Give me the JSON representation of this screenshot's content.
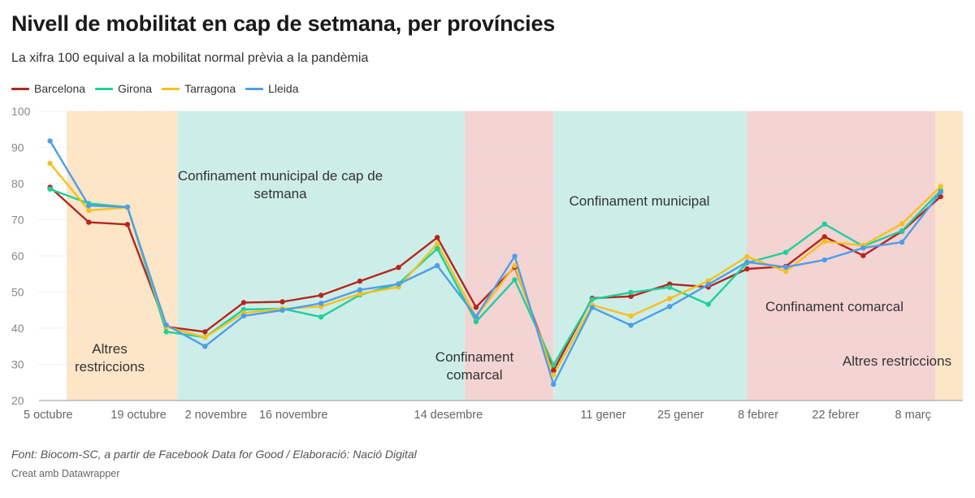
{
  "header": {
    "title": "Nivell de mobilitat en cap de setmana, per províncies",
    "subtitle": "La xifra 100 equival a la mobilitat normal prèvia a la pandèmia"
  },
  "footer": {
    "source": "Font: Biocom-SC, a partir de Facebook Data for Good / Elaboració: Nació Digital",
    "credit": "Creat amb Datawrapper"
  },
  "chart_data": {
    "type": "line",
    "title": "Nivell de mobilitat en cap de setmana, per províncies",
    "subtitle": "La xifra 100 equival a la mobilitat normal prèvia a la pandèmia",
    "xlabel": "",
    "ylabel": "",
    "ylim": [
      20,
      100
    ],
    "yticks": [
      20,
      30,
      40,
      50,
      60,
      70,
      80,
      90,
      100
    ],
    "grid": true,
    "legend_position": "top-left",
    "x": [
      "2020-10-03",
      "2020-10-10",
      "2020-10-17",
      "2020-10-24",
      "2020-10-31",
      "2020-11-07",
      "2020-11-14",
      "2020-11-21",
      "2020-11-28",
      "2020-12-05",
      "2020-12-12",
      "2020-12-19",
      "2020-12-26",
      "2021-01-02",
      "2021-01-09",
      "2021-01-16",
      "2021-01-23",
      "2021-01-30",
      "2021-02-06",
      "2021-02-13",
      "2021-02-20",
      "2021-02-27",
      "2021-03-06",
      "2021-03-13"
    ],
    "xticks": [
      {
        "date": "2020-10-05",
        "label": "5 octubre"
      },
      {
        "date": "2020-10-19",
        "label": "19 octubre"
      },
      {
        "date": "2020-11-02",
        "label": "2 novembre"
      },
      {
        "date": "2020-11-16",
        "label": "16 novembre"
      },
      {
        "date": "2020-12-14",
        "label": "14 desembre"
      },
      {
        "date": "2021-01-11",
        "label": "11 gener"
      },
      {
        "date": "2021-01-25",
        "label": "25 gener"
      },
      {
        "date": "2021-02-08",
        "label": "8 febrer"
      },
      {
        "date": "2021-02-22",
        "label": "22 febrer"
      },
      {
        "date": "2021-03-08",
        "label": "8 març"
      }
    ],
    "series": [
      {
        "name": "Barcelona",
        "color": "#b5251f",
        "values": [
          79,
          69.3,
          68.7,
          40.4,
          39,
          47.1,
          47.3,
          49.1,
          53,
          56.8,
          65.1,
          45.8,
          56.9,
          28.3,
          48.3,
          48.8,
          52.2,
          51.4,
          56.4,
          57.1,
          65.3,
          60.1,
          66.8,
          76.4
        ]
      },
      {
        "name": "Girona",
        "color": "#1fcf9c",
        "values": [
          78.5,
          74.5,
          73.5,
          39,
          37.5,
          45.2,
          45.4,
          43.1,
          49.2,
          52.3,
          62,
          41.8,
          53.4,
          29.8,
          48,
          49.9,
          51.3,
          46.6,
          58.1,
          61,
          68.8,
          62.7,
          66.9,
          78.1
        ]
      },
      {
        "name": "Tarragona",
        "color": "#f6c01f",
        "values": [
          85.6,
          72.6,
          73.4,
          40.4,
          37.5,
          44.2,
          45.4,
          46,
          49.5,
          51.4,
          63.4,
          43.1,
          57.3,
          27.1,
          46.4,
          43.4,
          48.2,
          53.1,
          59.8,
          55.7,
          64,
          62.9,
          68.9,
          79.2
        ]
      },
      {
        "name": "Lleida",
        "color": "#4d9ee9",
        "values": [
          91.8,
          73.9,
          73.5,
          40.9,
          35,
          43.4,
          45,
          46.9,
          50.6,
          52.2,
          57.3,
          43.2,
          59.9,
          24.5,
          45.7,
          40.8,
          46,
          52.1,
          58.3,
          56.9,
          58.9,
          62.2,
          63.8,
          77.6
        ]
      }
    ],
    "annotations": [
      {
        "label": "Altres restriccions",
        "start": "2020-10-06",
        "end": "2020-10-26",
        "color": "#fde5c7"
      },
      {
        "label": "Confinament municipal de cap de setmana",
        "start": "2020-10-26",
        "end": "2020-12-17",
        "color": "#cdeee8"
      },
      {
        "label": "Confinament comarcal",
        "start": "2020-12-17",
        "end": "2021-01-02",
        "color": "#f4d3d3"
      },
      {
        "label": "Confinament municipal",
        "start": "2021-01-02",
        "end": "2021-02-06",
        "color": "#cdeee8"
      },
      {
        "label": "Confinament comarcal",
        "start": "2021-02-06",
        "end": "2021-03-12",
        "color": "#f4d3d3"
      },
      {
        "label": "Altres restriccions",
        "start": "2021-03-12",
        "end": "2021-03-17",
        "color": "#fde5c7"
      }
    ]
  }
}
